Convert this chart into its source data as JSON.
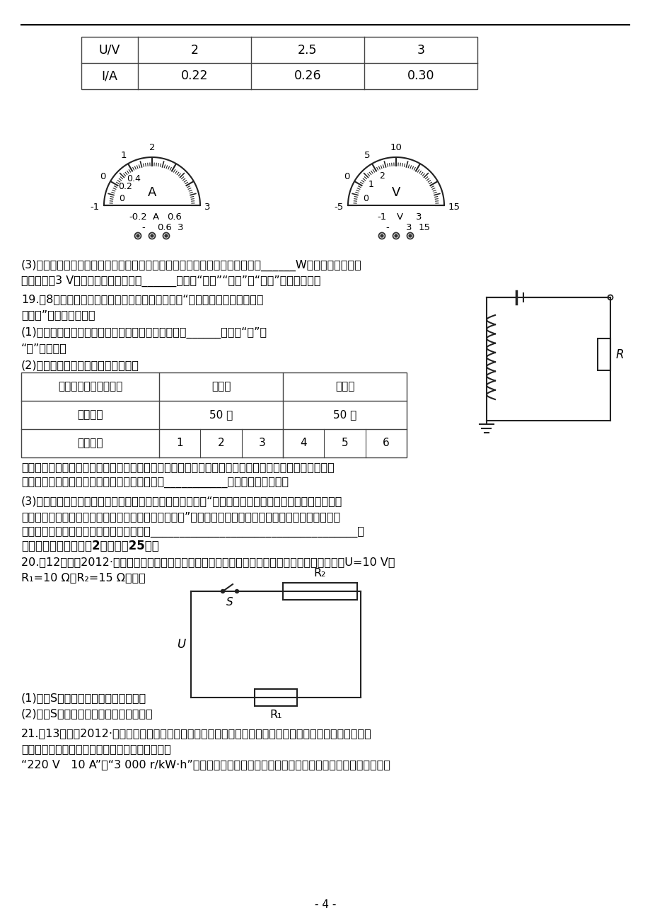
{
  "bg_color": "#ffffff",
  "text_color": "#000000",
  "page_number": "- 4 -",
  "table1_headers": [
    "U/V",
    "2",
    "2.5",
    "3"
  ],
  "table1_row2": [
    "I/A",
    "0.22",
    "0.26",
    "0.30"
  ],
  "para3_line1": "(3)假如不重新实验，请你利用小红已获取的信息，计算出该灯泡的额定功率是______W。若小灯泡两端的",
  "para3_line2": "实际电压为3 V，则小灯泡的实际功率______（选填“大于”“等于”或“小于”）额定功率。",
  "para19_line1": "19.（8分）如图所示是某学习小组同学设计的研究“影响通电螺线管磁性强弱",
  "para19_line2": "的因素”的实验电路图。",
  "para19_1_line1": "(1)要增大通电螺线管的电流，滑动变阻器的滑片应向______（选填“左”或",
  "para19_1_line2": "“右”）移动。",
  "para19_2": "(2)如表是该组同学所做实验的记录：",
  "table2_r1c1": "通电螺线管中有无鐵芯",
  "table2_r1c2": "无鐵芯",
  "table2_r1c3": "有鐵芯",
  "table2_r2c1": "线圈匹数",
  "table2_r2c2": "50 匹",
  "table2_r2c3": "50 匹",
  "table2_r3c1": "实验次数",
  "table2_r3nums": [
    "1",
    "2",
    "3",
    "4",
    "5",
    "6"
  ],
  "para_mag_line1": "同学们发现无鐵芯组实验中没有吸引起大头针，那么通电螺线管到底有没有磁性呢？他们通过其他方法验",
  "para_mag_line2": "证了几次都是有磁性的。他们采用的方法可能是___________。（写出一种即可）",
  "para19_3_line1": "(3)在与同学们交流讨论时，另一组的同学提出一个新问题：“当线圈中的电流和匹数一定时，通电螺线管",
  "para19_3_line2": "的磁性强弱是否还与线圈内的鐵芯大小（粗细）有关？”现有大小不同的两根鐵芯，请根据你的猜想并利用",
  "para19_3_line3": "本题电路，写出你验证猜想的简要操作方案____________________________________。",
  "section5_title": "五、计算题（本大题共2小题，內25分）",
  "para20_line1": "20.（12分）（2012·成都中考）某校科技小组设计了一个简易的电热器，电路原理如图所示，其中U=10 V，",
  "para20_line2": "R₁=10 Ω，R₂=15 Ω。求：",
  "para20_q1": "(1)开关S闭合时，电路的功率为多少？",
  "para20_q2": "(2)开关S断开时，电路中的电流为多大？",
  "para21_line1": "21.（13分）（2012·淤博中考）电磁炉是一种高效、方便、卫生的新型灶具。为了研究电磁炉，小峰同学首",
  "para21_line2": "先观察了家中的电能表，看到电能表的铭牌上标有",
  "para21_line3": "“220 V   10 A”和“3 000 r/kW·h”字样。然后小峰关闭了家中其他用电器，只把电磁炉接入电路中，"
}
